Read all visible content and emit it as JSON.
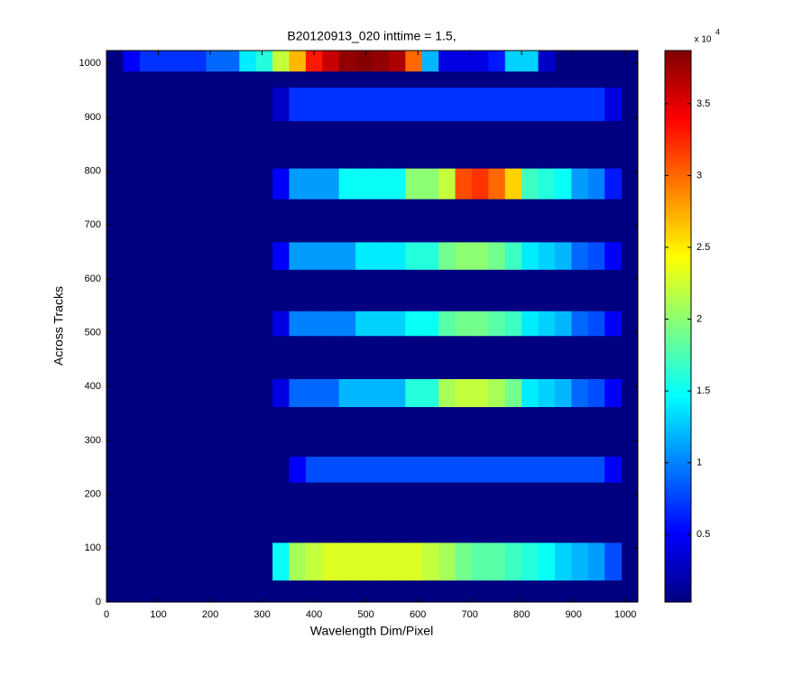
{
  "chart_data": {
    "type": "heatmap",
    "title": "B20120913_020 inttime = 1.5,",
    "x_label": "Wavelength Dim/Pixel",
    "y_label": "Across Tracks",
    "xlim": [
      0,
      1024
    ],
    "ylim": [
      0,
      1024
    ],
    "xticks": [
      0,
      100,
      200,
      300,
      400,
      500,
      600,
      700,
      800,
      900,
      1000
    ],
    "yticks": [
      0,
      100,
      200,
      300,
      400,
      500,
      600,
      700,
      800,
      900,
      1000
    ],
    "xbins": [
      0,
      32,
      64,
      96,
      128,
      160,
      192,
      224,
      256,
      288,
      320,
      352,
      384,
      416,
      448,
      480,
      512,
      544,
      576,
      608,
      640,
      672,
      704,
      736,
      768,
      800,
      832,
      864,
      896,
      928,
      960,
      992,
      1024
    ],
    "rows": [
      {
        "y": [
          40,
          110
        ],
        "values": [
          null,
          null,
          null,
          null,
          null,
          null,
          null,
          null,
          null,
          null,
          15000,
          21000,
          22000,
          23000,
          23000,
          23000,
          23000,
          23000,
          23000,
          22000,
          21000,
          19000,
          18000,
          18000,
          17000,
          16000,
          15000,
          13000,
          12000,
          11000,
          8000,
          null
        ]
      },
      {
        "y": [
          222,
          270
        ],
        "values": [
          null,
          null,
          null,
          null,
          null,
          null,
          null,
          null,
          null,
          null,
          null,
          5000,
          8000,
          8000,
          8000,
          8000,
          8000,
          8000,
          8000,
          8000,
          8000,
          8000,
          8000,
          8000,
          8000,
          8000,
          8000,
          8000,
          8000,
          8000,
          5000,
          null
        ]
      },
      {
        "y": [
          362,
          414
        ],
        "values": [
          null,
          null,
          null,
          null,
          null,
          null,
          null,
          null,
          null,
          null,
          4000,
          9000,
          9000,
          9000,
          12000,
          12000,
          12000,
          12000,
          16000,
          16000,
          21000,
          22000,
          22000,
          21000,
          19000,
          14000,
          13000,
          12000,
          9000,
          8000,
          5000,
          null
        ]
      },
      {
        "y": [
          494,
          540
        ],
        "values": [
          null,
          null,
          null,
          null,
          null,
          null,
          null,
          null,
          null,
          null,
          4000,
          10000,
          10000,
          10000,
          10000,
          13000,
          13000,
          13000,
          15000,
          15000,
          18000,
          19000,
          19000,
          18000,
          17000,
          14000,
          13000,
          12000,
          9000,
          8000,
          5000,
          null
        ]
      },
      {
        "y": [
          617,
          668
        ],
        "values": [
          null,
          null,
          null,
          null,
          null,
          null,
          null,
          null,
          null,
          null,
          5000,
          11000,
          11000,
          11000,
          11000,
          14000,
          14000,
          14000,
          16000,
          16000,
          19000,
          20000,
          20000,
          19000,
          17000,
          14000,
          13000,
          12000,
          9000,
          8000,
          5000,
          null
        ]
      },
      {
        "y": [
          748,
          805
        ],
        "values": [
          null,
          null,
          null,
          null,
          null,
          null,
          null,
          null,
          null,
          null,
          5000,
          11000,
          11000,
          11000,
          15000,
          15000,
          15000,
          15000,
          20000,
          20000,
          22000,
          31000,
          32000,
          30000,
          26000,
          17000,
          16000,
          15000,
          11000,
          10000,
          6000,
          null
        ]
      },
      {
        "y": [
          893,
          955
        ],
        "values": [
          null,
          null,
          null,
          null,
          null,
          null,
          null,
          null,
          null,
          null,
          3000,
          7000,
          7000,
          7000,
          7000,
          7000,
          7000,
          7000,
          7000,
          7000,
          7000,
          7000,
          7000,
          7000,
          7000,
          7000,
          7000,
          7000,
          7000,
          7000,
          4000,
          null
        ]
      },
      {
        "y": [
          985,
          1024
        ],
        "values": [
          null,
          5000,
          7000,
          7000,
          7000,
          7000,
          9000,
          9000,
          14000,
          16000,
          22000,
          27000,
          33000,
          36000,
          38000,
          38500,
          38000,
          37000,
          30000,
          12000,
          4000,
          4000,
          4000,
          6000,
          13000,
          13000,
          3000,
          null,
          null,
          null,
          null,
          null
        ]
      }
    ],
    "zlim": [
      300,
      38700
    ],
    "colorbar_ticks": [
      {
        "value": 5000,
        "label": "0.5"
      },
      {
        "value": 10000,
        "label": "1"
      },
      {
        "value": 15000,
        "label": "1.5"
      },
      {
        "value": 20000,
        "label": "2"
      },
      {
        "value": 25000,
        "label": "2.5"
      },
      {
        "value": 30000,
        "label": "3"
      },
      {
        "value": 35000,
        "label": "3.5"
      }
    ],
    "colorbar_exponent_base": "x 10",
    "colorbar_exponent": "4",
    "colormap": "jet"
  }
}
